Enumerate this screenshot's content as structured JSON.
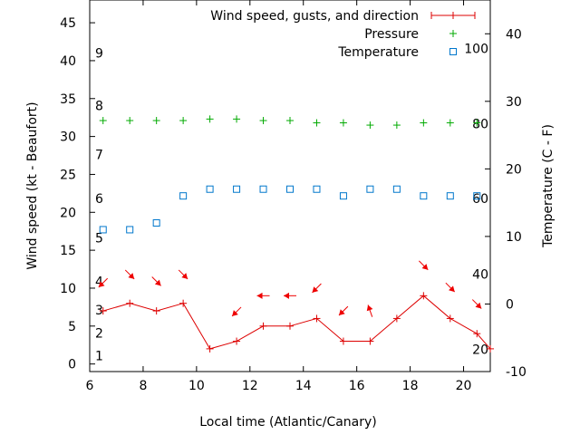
{
  "chart_data": {
    "type": "line",
    "xlabel": "Local time (Atlantic/Canary)",
    "ylabel": "Wind speed (kt - Beaufort)",
    "y2label": "Temperature (C - F)",
    "xlim": [
      6,
      21
    ],
    "ylim": [
      -1,
      48
    ],
    "y2lim": [
      -10,
      45
    ],
    "x_ticks": [
      6,
      8,
      10,
      12,
      14,
      16,
      18,
      20
    ],
    "y_ticks": [
      0,
      5,
      10,
      15,
      20,
      25,
      30,
      35,
      40,
      45
    ],
    "y2_ticks": [
      -10,
      0,
      10,
      20,
      30,
      40
    ],
    "beaufort_labels": [
      {
        "label": "1",
        "y": 1.1
      },
      {
        "label": "2",
        "y": 4.1
      },
      {
        "label": "3",
        "y": 7.1
      },
      {
        "label": "4",
        "y": 10.9
      },
      {
        "label": "5",
        "y": 16.6
      },
      {
        "label": "6",
        "y": 21.8
      },
      {
        "label": "7",
        "y": 27.6
      },
      {
        "label": "8",
        "y": 34.1
      },
      {
        "label": "9",
        "y": 41.0
      }
    ],
    "fahrenheit_labels": [
      {
        "label": "20",
        "y2": -6.7
      },
      {
        "label": "40",
        "y2": 4.4
      },
      {
        "label": "60",
        "y2": 15.6
      },
      {
        "label": "80",
        "y2": 26.7
      },
      {
        "label": "100",
        "y2": 37.8
      }
    ],
    "legend": {
      "position": "top-right",
      "entries": [
        "Wind speed, gusts, and direction",
        "Pressure",
        "Temperature"
      ]
    },
    "colors": {
      "wind": "#dd0000",
      "pressure": "#00aa00",
      "temperature": "#0077cc",
      "arrows": "#ee0000"
    },
    "series": [
      {
        "name": "Wind speed, gusts, and direction",
        "x": [
          6.5,
          7.5,
          8.5,
          9.5,
          10.5,
          11.5,
          12.5,
          13.5,
          14.5,
          15.5,
          16.5,
          17.5,
          18.5,
          19.5,
          20.5,
          21
        ],
        "y": [
          7,
          8,
          7,
          8,
          2,
          3,
          5,
          5,
          6,
          3,
          3,
          6,
          9,
          6,
          4,
          2
        ]
      },
      {
        "name": "Pressure",
        "x": [
          6.5,
          7.5,
          8.5,
          9.5,
          10.5,
          11.5,
          12.5,
          13.5,
          14.5,
          15.5,
          16.5,
          17.5,
          18.5,
          19.5,
          20.5
        ],
        "y": [
          32.1,
          32.1,
          32.1,
          32.1,
          32.3,
          32.3,
          32.1,
          32.1,
          31.8,
          31.8,
          31.5,
          31.5,
          31.8,
          31.8,
          31.8
        ]
      },
      {
        "name": "Temperature",
        "x": [
          6.5,
          7.5,
          8.5,
          9.5,
          10.5,
          11.5,
          12.5,
          13.5,
          14.5,
          15.5,
          16.5,
          17.5,
          18.5,
          19.5,
          20.5
        ],
        "y2": [
          11,
          11,
          12,
          16,
          17,
          17,
          17,
          17,
          17,
          16,
          17,
          17,
          16,
          16,
          16
        ]
      }
    ],
    "wind_arrows": [
      {
        "x": 6.5,
        "y": 10.7,
        "direction": "south-west"
      },
      {
        "x": 7.5,
        "y": 11.8,
        "direction": "south-east"
      },
      {
        "x": 8.5,
        "y": 10.9,
        "direction": "south-east"
      },
      {
        "x": 9.5,
        "y": 11.8,
        "direction": "south-east"
      },
      {
        "x": 11.5,
        "y": 6.9,
        "direction": "south-west"
      },
      {
        "x": 12.5,
        "y": 9.0,
        "direction": "west"
      },
      {
        "x": 13.5,
        "y": 9.0,
        "direction": "west"
      },
      {
        "x": 14.5,
        "y": 10.0,
        "direction": "south-west"
      },
      {
        "x": 15.5,
        "y": 7.0,
        "direction": "south-west"
      },
      {
        "x": 16.5,
        "y": 7.0,
        "direction": "north-north-west"
      },
      {
        "x": 18.5,
        "y": 13.0,
        "direction": "south-east"
      },
      {
        "x": 19.5,
        "y": 10.1,
        "direction": "south-east"
      },
      {
        "x": 20.5,
        "y": 7.9,
        "direction": "south-east"
      }
    ]
  }
}
